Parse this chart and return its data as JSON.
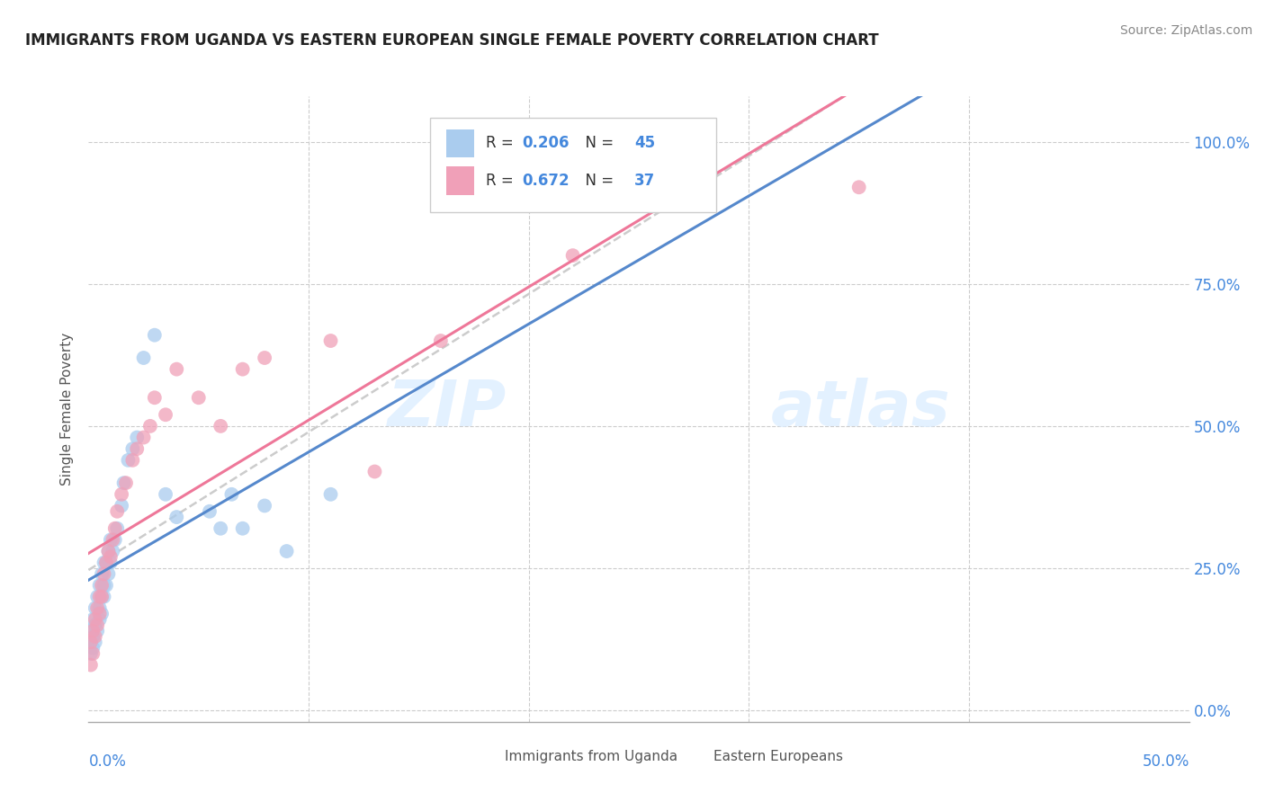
{
  "title": "IMMIGRANTS FROM UGANDA VS EASTERN EUROPEAN SINGLE FEMALE POVERTY CORRELATION CHART",
  "source": "Source: ZipAtlas.com",
  "ylabel": "Single Female Poverty",
  "ytick_vals": [
    0.0,
    0.25,
    0.5,
    0.75,
    1.0
  ],
  "ytick_labels": [
    "0.0%",
    "25.0%",
    "50.0%",
    "75.0%",
    "100.0%"
  ],
  "xlim": [
    0.0,
    0.5
  ],
  "ylim": [
    -0.02,
    1.08
  ],
  "legend_label1": "Immigrants from Uganda",
  "legend_label2": "Eastern Europeans",
  "color_uganda": "#aaccee",
  "color_eastern": "#f0a0b8",
  "color_uganda_line": "#5588cc",
  "color_eastern_line": "#ee7799",
  "color_trendline_gray": "#bbbbbb",
  "watermark_zip": "ZIP",
  "watermark_atlas": "atlas",
  "uganda_scatter_x": [
    0.001,
    0.001,
    0.001,
    0.002,
    0.002,
    0.002,
    0.003,
    0.003,
    0.003,
    0.004,
    0.004,
    0.005,
    0.005,
    0.005,
    0.006,
    0.006,
    0.006,
    0.007,
    0.007,
    0.007,
    0.008,
    0.008,
    0.009,
    0.009,
    0.01,
    0.01,
    0.011,
    0.012,
    0.013,
    0.015,
    0.016,
    0.018,
    0.02,
    0.022,
    0.025,
    0.03,
    0.035,
    0.04,
    0.055,
    0.06,
    0.065,
    0.07,
    0.08,
    0.09,
    0.11
  ],
  "uganda_scatter_y": [
    0.1,
    0.12,
    0.14,
    0.11,
    0.13,
    0.16,
    0.12,
    0.15,
    0.18,
    0.14,
    0.2,
    0.16,
    0.18,
    0.22,
    0.17,
    0.2,
    0.24,
    0.2,
    0.22,
    0.26,
    0.22,
    0.26,
    0.24,
    0.28,
    0.26,
    0.3,
    0.28,
    0.3,
    0.32,
    0.36,
    0.4,
    0.44,
    0.46,
    0.48,
    0.62,
    0.66,
    0.38,
    0.34,
    0.35,
    0.32,
    0.38,
    0.32,
    0.36,
    0.28,
    0.38
  ],
  "eastern_scatter_x": [
    0.001,
    0.001,
    0.002,
    0.002,
    0.003,
    0.003,
    0.004,
    0.004,
    0.005,
    0.005,
    0.006,
    0.006,
    0.007,
    0.008,
    0.009,
    0.01,
    0.011,
    0.012,
    0.013,
    0.015,
    0.017,
    0.02,
    0.022,
    0.025,
    0.028,
    0.03,
    0.035,
    0.04,
    0.05,
    0.06,
    0.07,
    0.08,
    0.11,
    0.13,
    0.16,
    0.22,
    0.35
  ],
  "eastern_scatter_y": [
    0.08,
    0.12,
    0.1,
    0.14,
    0.13,
    0.16,
    0.15,
    0.18,
    0.17,
    0.2,
    0.2,
    0.22,
    0.24,
    0.26,
    0.28,
    0.27,
    0.3,
    0.32,
    0.35,
    0.38,
    0.4,
    0.44,
    0.46,
    0.48,
    0.5,
    0.55,
    0.52,
    0.6,
    0.55,
    0.5,
    0.6,
    0.62,
    0.65,
    0.42,
    0.65,
    0.8,
    0.92
  ]
}
